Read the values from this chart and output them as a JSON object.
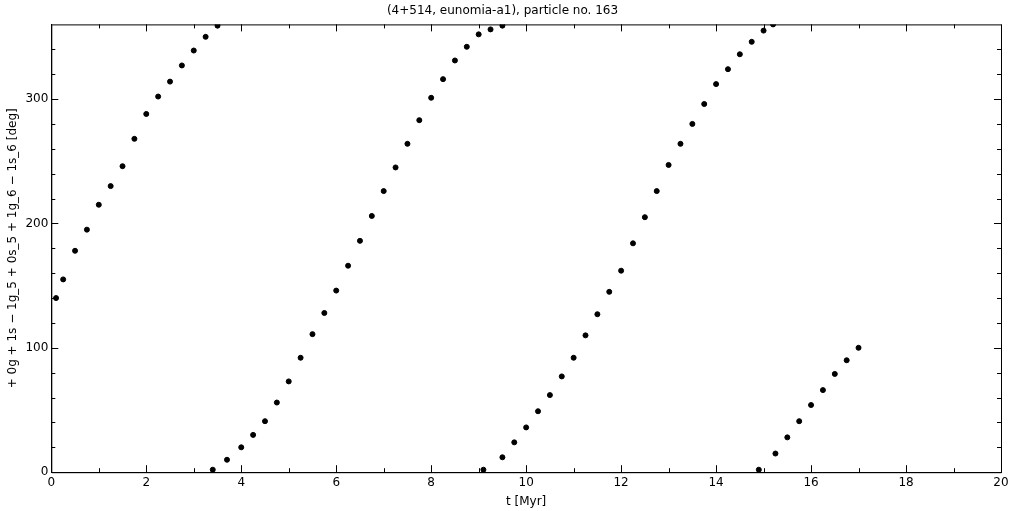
{
  "chart_data": {
    "type": "scatter",
    "title": "(4+514, eunomia-a1), particle no. 163",
    "xlabel": "t [Myr]",
    "ylabel": "+ 0g + 1s − 1g_5 + 0s_5 + 1g_6 − 1s_6 [deg]",
    "xlim": [
      0,
      20
    ],
    "ylim": [
      0,
      360
    ],
    "xticks": [
      0,
      {
        "value": 1,
        "label": null
      },
      2,
      {
        "value": 3,
        "label": null
      },
      4,
      {
        "value": 5,
        "label": null
      },
      6,
      {
        "value": 7,
        "label": null
      },
      8,
      {
        "value": 9,
        "label": null
      },
      10,
      {
        "value": 11,
        "label": null
      },
      12,
      {
        "value": 13,
        "label": null
      },
      14,
      {
        "value": 15,
        "label": null
      },
      16,
      {
        "value": 17,
        "label": null
      },
      18,
      {
        "value": 19,
        "label": null
      },
      20
    ],
    "yticks": [
      0,
      {
        "value": 20,
        "label": null
      },
      {
        "value": 40,
        "label": null
      },
      {
        "value": 60,
        "label": null
      },
      {
        "value": 80,
        "label": null
      },
      100,
      {
        "value": 120,
        "label": null
      },
      {
        "value": 140,
        "label": null
      },
      {
        "value": 160,
        "label": null
      },
      {
        "value": 180,
        "label": null
      },
      200,
      {
        "value": 220,
        "label": null
      },
      {
        "value": 240,
        "label": null
      },
      {
        "value": 260,
        "label": null
      },
      {
        "value": 280,
        "label": null
      },
      300,
      {
        "value": 320,
        "label": null
      },
      {
        "value": 340,
        "label": null
      }
    ],
    "marker": "circle",
    "grid": false,
    "legend": false,
    "series": [
      {
        "color": "#000000",
        "x": [
          0.1,
          0.25,
          0.5,
          0.75,
          1,
          1.25,
          1.5,
          1.75,
          2,
          2.25,
          2.5,
          2.75,
          3,
          3.25,
          3.5,
          3.4,
          3.7,
          4,
          4.25,
          4.5,
          4.75,
          5,
          5.25,
          5.5,
          5.75,
          6,
          6.25,
          6.5,
          6.75,
          7,
          7.25,
          7.5,
          7.75,
          8,
          8.25,
          8.5,
          8.75,
          9,
          9.25,
          9.5,
          9.1,
          9.5,
          9.75,
          10,
          10.25,
          10.5,
          10.75,
          11,
          11.25,
          11.5,
          11.75,
          12,
          12.25,
          12.5,
          12.75,
          13,
          13.25,
          13.5,
          13.75,
          14,
          14.25,
          14.5,
          14.75,
          15,
          15.2,
          14.9,
          15.25,
          15.5,
          15.75,
          16,
          16.25,
          16.5,
          16.75,
          17
        ],
        "values": [
          140,
          155,
          178,
          195,
          215,
          230,
          246,
          268,
          288,
          302,
          314,
          327,
          339,
          350,
          359,
          2,
          10,
          20,
          30,
          41,
          56,
          73,
          92,
          111,
          128,
          146,
          166,
          186,
          206,
          226,
          245,
          264,
          283,
          301,
          316,
          331,
          342,
          352,
          356,
          359,
          2,
          12,
          24,
          36,
          49,
          62,
          77,
          92,
          110,
          127,
          145,
          162,
          184,
          205,
          226,
          247,
          264,
          280,
          296,
          312,
          324,
          336,
          346,
          355,
          360,
          2,
          15,
          28,
          41,
          54,
          66,
          79,
          90,
          100
        ]
      }
    ]
  }
}
